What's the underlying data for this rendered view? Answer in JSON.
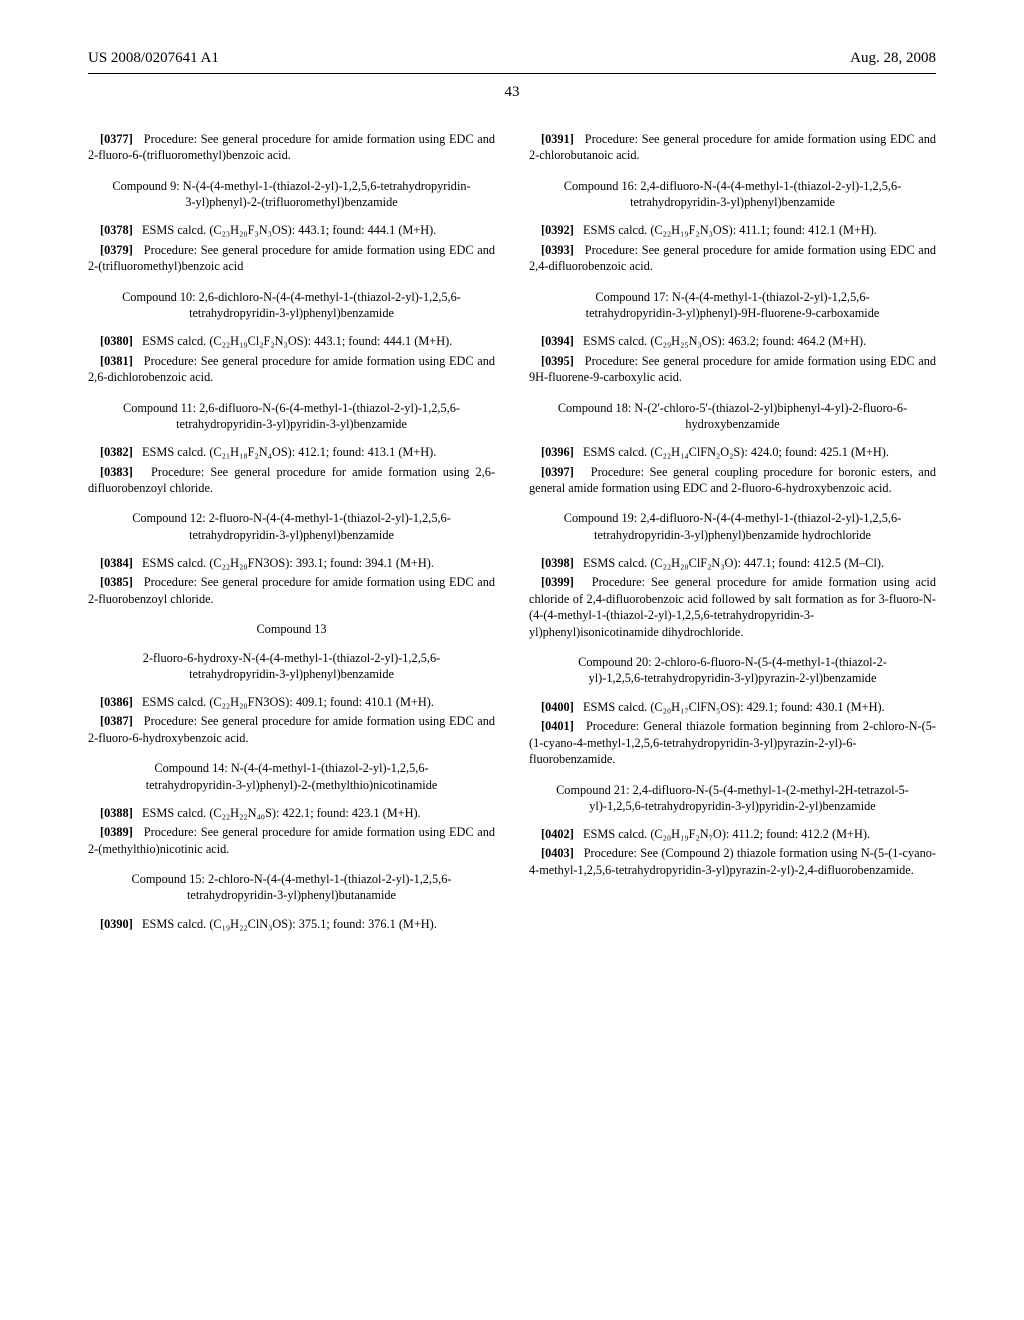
{
  "header": {
    "docNumber": "US 2008/0207641 A1",
    "date": "Aug. 28, 2008"
  },
  "pageNumber": "43",
  "left": {
    "p0377": "Procedure: See general procedure for amide formation using EDC and 2-fluoro-6-(trifluoromethyl)benzoic acid.",
    "c9": "Compound 9: N-(4-(4-methyl-1-(thiazol-2-yl)-1,2,5,6-tetrahydropyridin-3-yl)phenyl)-2-(trifluoromethyl)benzamide",
    "p0378": "ESMS calcd. (C₂₃H₂₀F₃N₃OS): 443.1; found: 444.1 (M+H).",
    "p0379": "Procedure: See general procedure for amide formation using EDC and 2-(trifluoromethyl)benzoic acid",
    "c10": "Compound 10: 2,6-dichloro-N-(4-(4-methyl-1-(thiazol-2-yl)-1,2,5,6-tetrahydropyridin-3-yl)phenyl)benzamide",
    "p0380": "ESMS calcd. (C₂₂H₁₉Cl₂F₂N₃OS): 443.1; found: 444.1 (M+H).",
    "p0381": "Procedure: See general procedure for amide formation using EDC and 2,6-dichlorobenzoic acid.",
    "c11": "Compound 11: 2,6-difluoro-N-(6-(4-methyl-1-(thiazol-2-yl)-1,2,5,6-tetrahydropyridin-3-yl)pyridin-3-yl)benzamide",
    "p0382": "ESMS calcd. (C₂₁H₁₈F₂N₄OS): 412.1; found: 413.1 (M+H).",
    "p0383": "Procedure: See general procedure for amide formation using 2,6-difluorobenzoyl chloride.",
    "c12": "Compound 12: 2-fluoro-N-(4-(4-methyl-1-(thiazol-2-yl)-1,2,5,6-tetrahydropyridin-3-yl)phenyl)benzamide",
    "p0384": "ESMS calcd. (C₂₂H₂₀FN3OS): 393.1; found: 394.1 (M+H).",
    "p0385": "Procedure: See general procedure for amide formation using EDC and 2-fluorobenzoyl chloride.",
    "c13a": "Compound 13",
    "c13b": "2-fluoro-6-hydroxy-N-(4-(4-methyl-1-(thiazol-2-yl)-1,2,5,6-tetrahydropyridin-3-yl)phenyl)benzamide",
    "p0386": "ESMS calcd. (C₂₂H₂₀FN3OS): 409.1; found: 410.1 (M+H).",
    "p0387": "Procedure: See general procedure for amide formation using EDC and 2-fluoro-6-hydroxybenzoic acid.",
    "c14": "Compound 14: N-(4-(4-methyl-1-(thiazol-2-yl)-1,2,5,6-tetrahydropyridin-3-yl)phenyl)-2-(methylthio)nicotinamide",
    "p0388": "ESMS calcd. (C₂₂H₂₂N₄₀S): 422.1; found: 423.1 (M+H).",
    "p0389": "Procedure: See general procedure for amide formation using EDC and 2-(methylthio)nicotinic acid.",
    "c15": "Compound 15: 2-chloro-N-(4-(4-methyl-1-(thiazol-2-yl)-1,2,5,6-tetrahydropyridin-3-yl)phenyl)butanamide",
    "p0390": "ESMS calcd. (C₁₉H₂₂ClN₃OS): 375.1; found: 376.1 (M+H)."
  },
  "right": {
    "p0391": "Procedure: See general procedure for amide formation using EDC and 2-chlorobutanoic acid.",
    "c16": "Compound 16: 2,4-difluoro-N-(4-(4-methyl-1-(thiazol-2-yl)-1,2,5,6-tetrahydropyridin-3-yl)phenyl)benzamide",
    "p0392": "ESMS calcd. (C₂₂H₁₉F₂N₃OS): 411.1; found: 412.1 (M+H).",
    "p0393": "Procedure: See general procedure for amide formation using EDC and 2,4-difluorobenzoic acid.",
    "c17": "Compound 17: N-(4-(4-methyl-1-(thiazol-2-yl)-1,2,5,6-tetrahydropyridin-3-yl)phenyl)-9H-fluorene-9-carboxamide",
    "p0394": "ESMS calcd. (C₂₉H₂₅N₃OS): 463.2; found: 464.2 (M+H).",
    "p0395": "Procedure: See general procedure for amide formation using EDC and 9H-fluorene-9-carboxylic acid.",
    "c18": "Compound 18: N-(2'-chloro-5'-(thiazol-2-yl)biphenyl-4-yl)-2-fluoro-6-hydroxybenzamide",
    "p0396": "ESMS calcd. (C₂₂H₁₄ClFN₂O₂S): 424.0; found: 425.1 (M+H).",
    "p0397": "Procedure: See general coupling procedure for boronic esters, and general amide formation using EDC and 2-fluoro-6-hydroxybenzoic acid.",
    "c19": "Compound 19: 2,4-difluoro-N-(4-(4-methyl-1-(thiazol-2-yl)-1,2,5,6-tetrahydropyridin-3-yl)phenyl)benzamide hydrochloride",
    "p0398": "ESMS calcd. (C₂₂H₂₀ClF₂N₃O): 447.1; found: 412.5 (M–Cl).",
    "p0399": "Procedure: See general procedure for amide formation using acid chloride of 2,4-difluorobenzoic acid followed by salt formation as for 3-fluoro-N-(4-(4-methyl-1-(thiazol-2-yl)-1,2,5,6-tetrahydropyridin-3-yl)phenyl)isonicotinamide dihydrochloride.",
    "c20": "Compound 20: 2-chloro-6-fluoro-N-(5-(4-methyl-1-(thiazol-2-yl)-1,2,5,6-tetrahydropyridin-3-yl)pyrazin-2-yl)benzamide",
    "p0400": "ESMS calcd. (C₂₀H₁₇ClFN₅OS): 429.1; found: 430.1 (M+H).",
    "p0401": "Procedure: General thiazole formation beginning from 2-chloro-N-(5-(1-cyano-4-methyl-1,2,5,6-tetrahydropyridin-3-yl)pyrazin-2-yl)-6-fluorobenzamide.",
    "c21": "Compound 21: 2,4-difluoro-N-(5-(4-methyl-1-(2-methyl-2H-tetrazol-5-yl)-1,2,5,6-tetrahydropyridin-3-yl)pyridin-2-yl)benzamide",
    "p0402": "ESMS calcd. (C₂₀H₁₉F₂N₇O): 411.2; found: 412.2 (M+H).",
    "p0403": "Procedure: See (Compound 2) thiazole formation using N-(5-(1-cyano-4-methyl-1,2,5,6-tetrahydropyridin-3-yl)pyrazin-2-yl)-2,4-difluorobenzamide."
  },
  "labels": {
    "p0377": "[0377]",
    "p0378": "[0378]",
    "p0379": "[0379]",
    "p0380": "[0380]",
    "p0381": "[0381]",
    "p0382": "[0382]",
    "p0383": "[0383]",
    "p0384": "[0384]",
    "p0385": "[0385]",
    "p0386": "[0386]",
    "p0387": "[0387]",
    "p0388": "[0388]",
    "p0389": "[0389]",
    "p0390": "[0390]",
    "p0391": "[0391]",
    "p0392": "[0392]",
    "p0393": "[0393]",
    "p0394": "[0394]",
    "p0395": "[0395]",
    "p0396": "[0396]",
    "p0397": "[0397]",
    "p0398": "[0398]",
    "p0399": "[0399]",
    "p0400": "[0400]",
    "p0401": "[0401]",
    "p0402": "[0402]",
    "p0403": "[0403]"
  }
}
